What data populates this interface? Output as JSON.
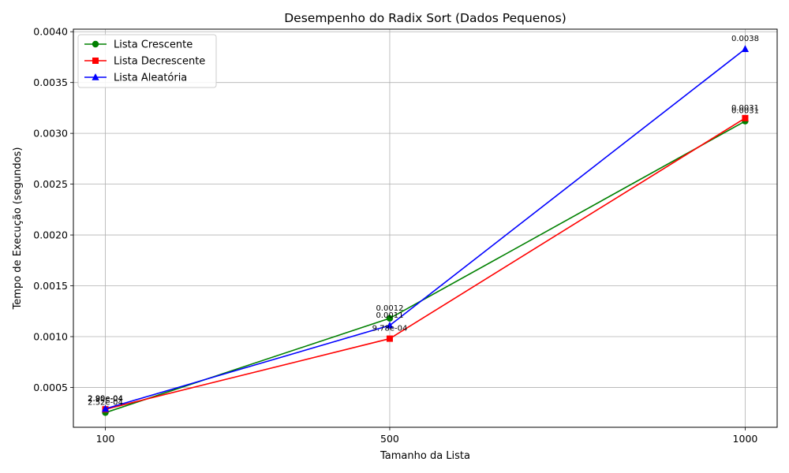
{
  "chart_data": {
    "type": "line",
    "title": "Desempenho do Radix Sort (Dados Pequenos)",
    "xlabel": "Tamanho da Lista",
    "ylabel": "Tempo de Execução (segundos)",
    "categories": [
      "100",
      "500",
      "1000"
    ],
    "x": [
      100,
      500,
      1000
    ],
    "xlim": [
      55,
      1045
    ],
    "ylim": [
      0.000108,
      0.004025
    ],
    "yticks": [
      0.0005,
      0.001,
      0.0015,
      0.002,
      0.0025,
      0.003,
      0.0035,
      0.004
    ],
    "ytick_labels": [
      "0.0005",
      "0.0010",
      "0.0015",
      "0.0020",
      "0.0025",
      "0.0030",
      "0.0035",
      "0.0040"
    ],
    "grid": true,
    "legend_position": "top-left",
    "series": [
      {
        "name": "Lista Crescente",
        "color": "#008000",
        "marker": "circle",
        "values": [
          0.000252,
          0.00118,
          0.00312
        ],
        "labels": [
          "2.52e-04",
          "0.0012",
          "0.0031"
        ]
      },
      {
        "name": "Lista Decrescente",
        "color": "#ff0000",
        "marker": "square",
        "values": [
          0.000285,
          0.00098,
          0.00315
        ],
        "labels": [
          "2.85e-04",
          "9.78e-04",
          "0.0031"
        ]
      },
      {
        "name": "Lista Aleatória",
        "color": "#0000ff",
        "marker": "triangle",
        "values": [
          0.00029,
          0.00111,
          0.00383
        ],
        "labels": [
          "2.90e-04",
          "0.0011",
          "0.0038"
        ]
      }
    ]
  }
}
